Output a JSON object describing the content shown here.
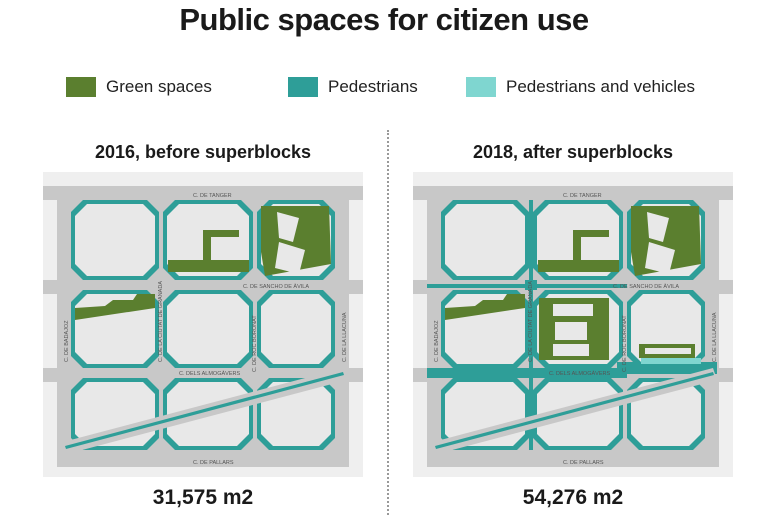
{
  "title": "Public spaces for citizen use",
  "legend": [
    {
      "label": "Green spaces",
      "color": "#5b7f2f"
    },
    {
      "label": "Pedestrians",
      "color": "#2e9e98"
    },
    {
      "label": "Pedestrians and vehicles",
      "color": "#7fd6d0"
    }
  ],
  "colors": {
    "street": "#c8c8c8",
    "block": "#e8e8e8",
    "surround": "#efefef"
  },
  "maps": [
    {
      "label": "2016, before superblocks",
      "total": "31,575 m2",
      "streets": {
        "top": "C. DE TANGER",
        "middle": "C. DE SANCHO DE ÀVILA",
        "lower": "C. DELS ALMOGÀVERS",
        "bottom": "C. DE PALLARS",
        "left": "C. DE BADAJOZ",
        "center_left": "C. DE LA CIUTAT DE GRANADA",
        "center_right": "C. DE ROC BORONAT",
        "right": "C. DE LA LLACUNA"
      }
    },
    {
      "label": "2018, after superblocks",
      "total": "54,276 m2",
      "streets": {
        "top": "C. DE TANGER",
        "middle": "C. DE SANCHO DE ÀVILA",
        "lower": "C. DELS ALMOGÀVERS",
        "bottom": "C. DE PALLARS",
        "left": "C. DE BADAJOZ",
        "center_left": "C. DE LA CIUTAT DE GRANADA",
        "center_right": "C. DE ROC BORONAT",
        "right": "C. DE LA LLACUNA"
      }
    }
  ]
}
